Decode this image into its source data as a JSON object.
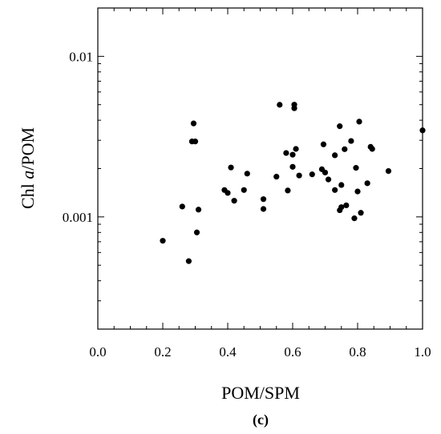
{
  "chart_data": {
    "type": "scatter",
    "xlabel": "POM/SPM",
    "ylabel_parts": [
      "Chl ",
      "a",
      "/POM"
    ],
    "panel_label": "(c)",
    "xlim": [
      0.0,
      1.0
    ],
    "ylim": [
      0.0002,
      0.02
    ],
    "yscale": "log",
    "grid": false,
    "x_ticks": [
      0.0,
      0.2,
      0.4,
      0.6,
      0.8,
      1.0
    ],
    "x_tick_labels": [
      "0.0",
      "0.2",
      "0.4",
      "0.6",
      "0.8",
      "1.0"
    ],
    "y_ticks": [
      0.001,
      0.01
    ],
    "y_tick_labels": [
      "0.001",
      "0.01"
    ],
    "marker_color": "#000000",
    "points": [
      [
        0.2,
        0.00071
      ],
      [
        0.26,
        0.00116
      ],
      [
        0.28,
        0.00053
      ],
      [
        0.29,
        0.00295
      ],
      [
        0.295,
        0.00382
      ],
      [
        0.3,
        0.00295
      ],
      [
        0.305,
        0.0008
      ],
      [
        0.31,
        0.00111
      ],
      [
        0.39,
        0.00147
      ],
      [
        0.4,
        0.00141
      ],
      [
        0.41,
        0.00203
      ],
      [
        0.42,
        0.00126
      ],
      [
        0.45,
        0.00147
      ],
      [
        0.46,
        0.00186
      ],
      [
        0.51,
        0.00112
      ],
      [
        0.51,
        0.00129
      ],
      [
        0.55,
        0.00178
      ],
      [
        0.56,
        0.00499
      ],
      [
        0.58,
        0.0025
      ],
      [
        0.585,
        0.00146
      ],
      [
        0.6,
        0.00205
      ],
      [
        0.6,
        0.00244
      ],
      [
        0.605,
        0.005
      ],
      [
        0.605,
        0.00475
      ],
      [
        0.61,
        0.00265
      ],
      [
        0.62,
        0.00181
      ],
      [
        0.66,
        0.00184
      ],
      [
        0.69,
        0.00198
      ],
      [
        0.695,
        0.00283
      ],
      [
        0.7,
        0.00189
      ],
      [
        0.71,
        0.00171
      ],
      [
        0.73,
        0.00147
      ],
      [
        0.73,
        0.00242
      ],
      [
        0.745,
        0.00367
      ],
      [
        0.745,
        0.0011
      ],
      [
        0.75,
        0.00158
      ],
      [
        0.75,
        0.00115
      ],
      [
        0.76,
        0.00264
      ],
      [
        0.765,
        0.00118
      ],
      [
        0.78,
        0.00297
      ],
      [
        0.79,
        0.00098
      ],
      [
        0.795,
        0.00202
      ],
      [
        0.8,
        0.00144
      ],
      [
        0.805,
        0.00392
      ],
      [
        0.81,
        0.00106
      ],
      [
        0.83,
        0.00162
      ],
      [
        0.84,
        0.00273
      ],
      [
        0.845,
        0.00265
      ],
      [
        0.895,
        0.00193
      ],
      [
        1.0,
        0.00346
      ]
    ]
  }
}
